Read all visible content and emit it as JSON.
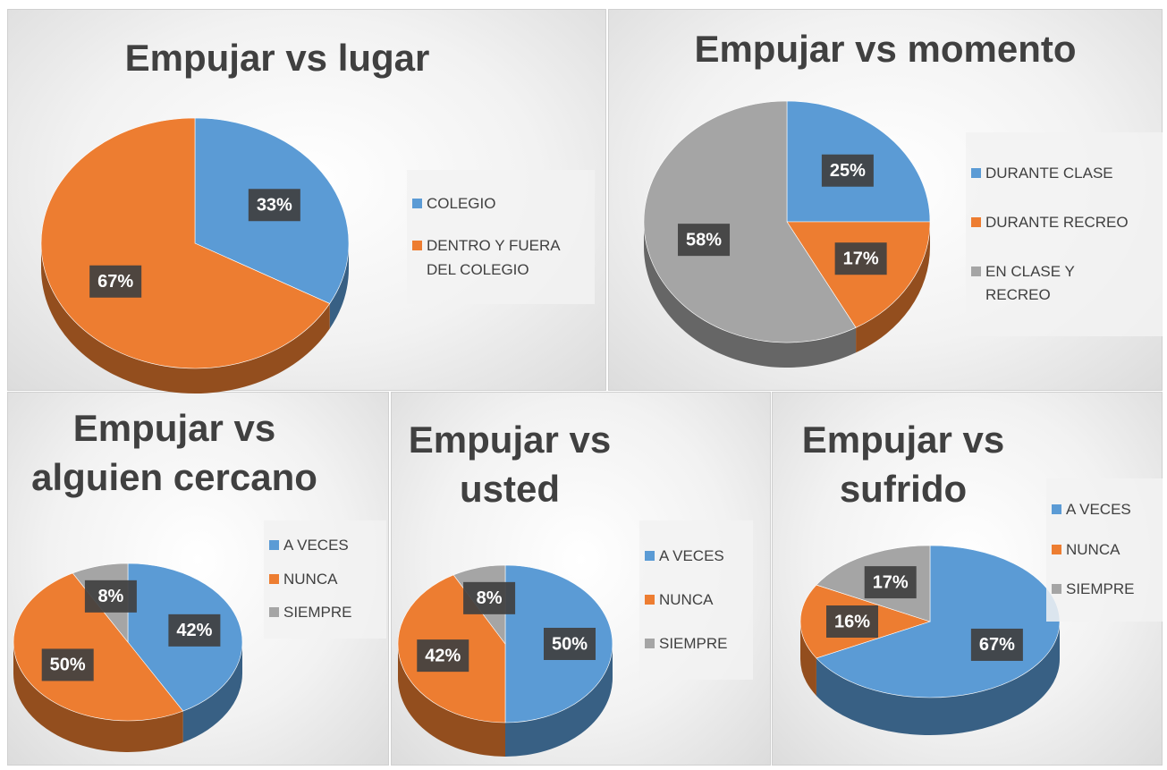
{
  "chart_data": [
    {
      "type": "pie",
      "title": "Empujar vs lugar",
      "categories": [
        "COLEGIO",
        "DENTRO Y FUERA DEL COLEGIO"
      ],
      "values": [
        33,
        67
      ],
      "value_labels": [
        "33%",
        "67%"
      ],
      "colors": [
        "#5b9bd5",
        "#ed7d31"
      ]
    },
    {
      "type": "pie",
      "title": "Empujar vs momento",
      "categories": [
        "DURANTE CLASE",
        "DURANTE RECREO",
        "EN CLASE Y RECREO"
      ],
      "values": [
        25,
        17,
        58
      ],
      "value_labels": [
        "25%",
        "17%",
        "58%"
      ],
      "colors": [
        "#5b9bd5",
        "#ed7d31",
        "#a5a5a5"
      ]
    },
    {
      "type": "pie",
      "title": "Empujar vs alguien cercano",
      "categories": [
        "A VECES",
        "NUNCA",
        "SIEMPRE"
      ],
      "values": [
        42,
        50,
        8
      ],
      "value_labels": [
        "42%",
        "50%",
        "8%"
      ],
      "colors": [
        "#5b9bd5",
        "#ed7d31",
        "#a5a5a5"
      ]
    },
    {
      "type": "pie",
      "title": "Empujar vs usted",
      "categories": [
        "A VECES",
        "NUNCA",
        "SIEMPRE"
      ],
      "values": [
        50,
        42,
        8
      ],
      "value_labels": [
        "50%",
        "42%",
        "8%"
      ],
      "colors": [
        "#5b9bd5",
        "#ed7d31",
        "#a5a5a5"
      ]
    },
    {
      "type": "pie",
      "title": "Empujar vs sufrido",
      "categories": [
        "A VECES",
        "NUNCA",
        "SIEMPRE"
      ],
      "values": [
        67,
        16,
        17
      ],
      "value_labels": [
        "67%",
        "16%",
        "17%"
      ],
      "colors": [
        "#5b9bd5",
        "#ed7d31",
        "#a5a5a5"
      ]
    }
  ]
}
